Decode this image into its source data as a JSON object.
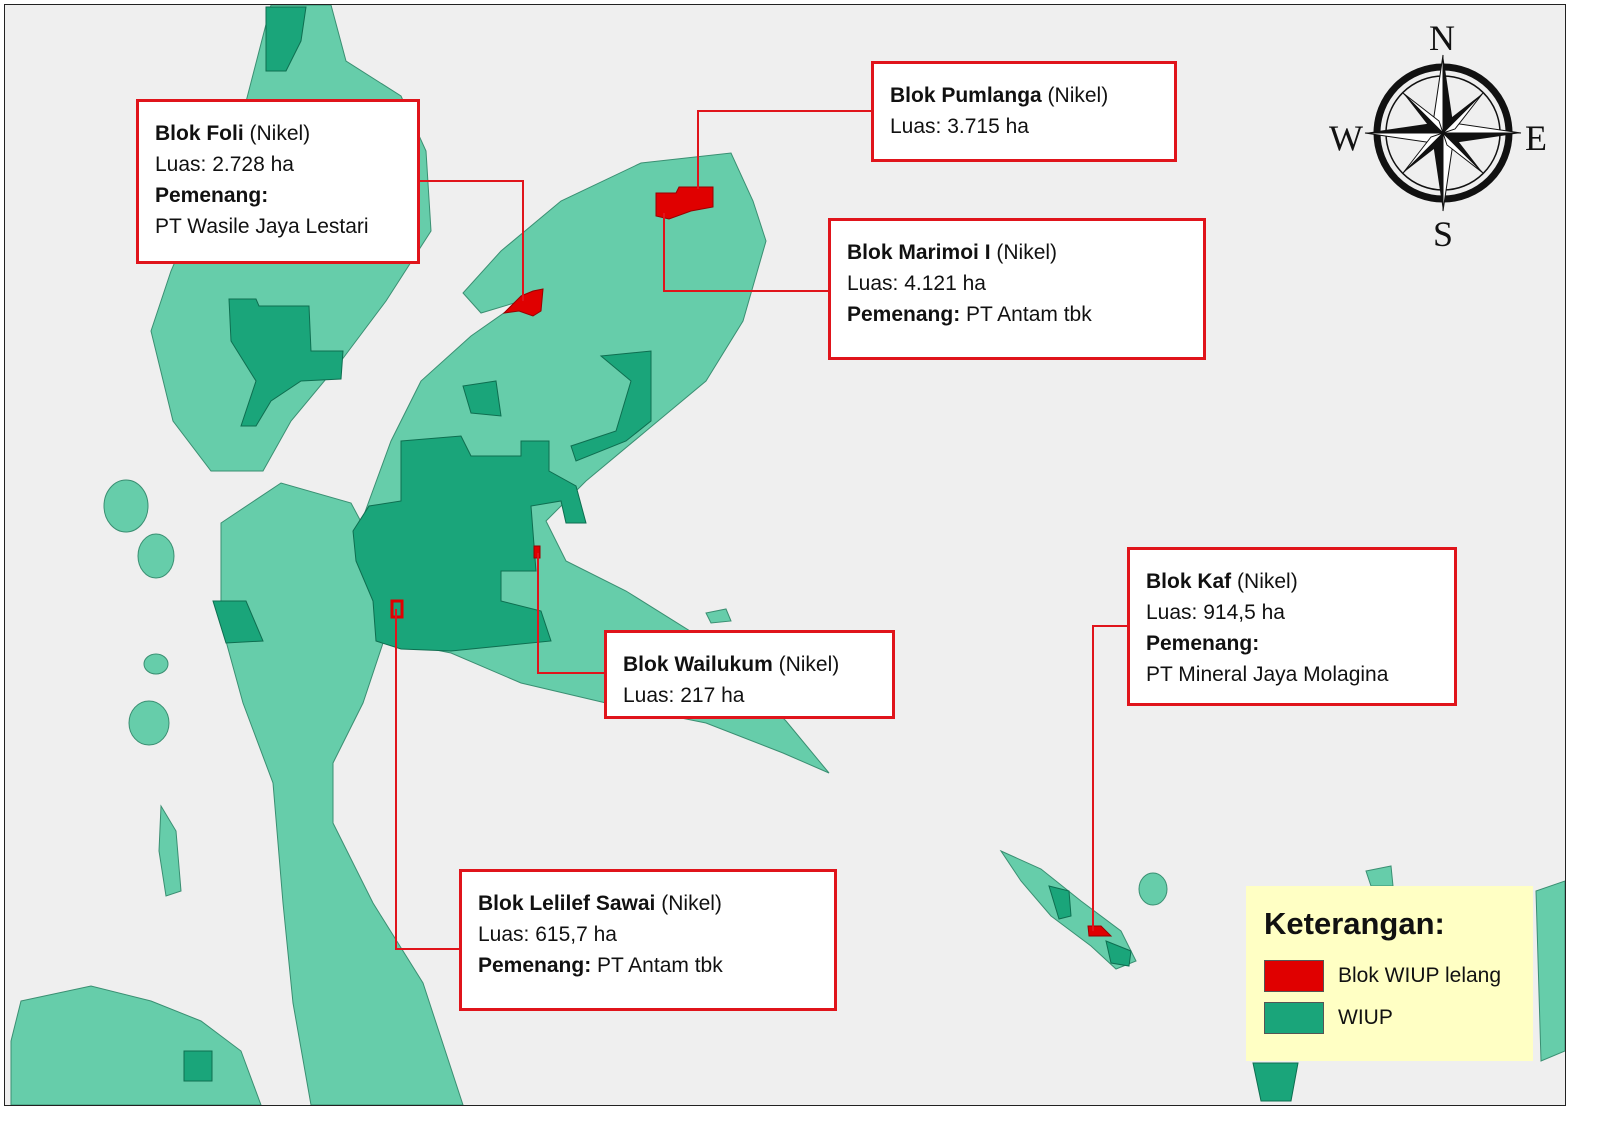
{
  "colors": {
    "land": "#66cdaa",
    "wiup": "#1aa57a",
    "lelang": "#e00000",
    "border": "#e0141b",
    "legend_bg": "#ffffc4",
    "sea": "#efefef"
  },
  "compass": {
    "icon": "compass-rose-icon",
    "n": "N",
    "e": "E",
    "s": "S",
    "w": "W"
  },
  "blocks": [
    {
      "name": "Blok Foli",
      "type": "(Nikel)",
      "area": "Luas: 2.728 ha",
      "winner_label": "Pemenang:",
      "winner": "PT Wasile Jaya Lestari"
    },
    {
      "name": "Blok Pumlanga",
      "type": "(Nikel)",
      "area": "Luas: 3.715 ha"
    },
    {
      "name": "Blok Marimoi I",
      "type": "(Nikel)",
      "area": "Luas: 4.121 ha",
      "winner_label": "Pemenang:",
      "winner": "PT Antam tbk"
    },
    {
      "name": "Blok Wailukum",
      "type": "(Nikel)",
      "area": "Luas: 217 ha"
    },
    {
      "name": "Blok Lelilef Sawai",
      "type": "(Nikel)",
      "area": "Luas: 615,7 ha",
      "winner_label": "Pemenang:",
      "winner": "PT Antam tbk"
    },
    {
      "name": "Blok Kaf",
      "type": "(Nikel)",
      "area": "Luas: 914,5 ha",
      "winner_label": "Pemenang:",
      "winner": "PT Mineral Jaya Molagina"
    }
  ],
  "legend": {
    "title": "Keterangan:",
    "items": [
      {
        "label": "Blok WIUP lelang",
        "color": "#e00000"
      },
      {
        "label": "WIUP",
        "color": "#1aa57a"
      }
    ]
  }
}
